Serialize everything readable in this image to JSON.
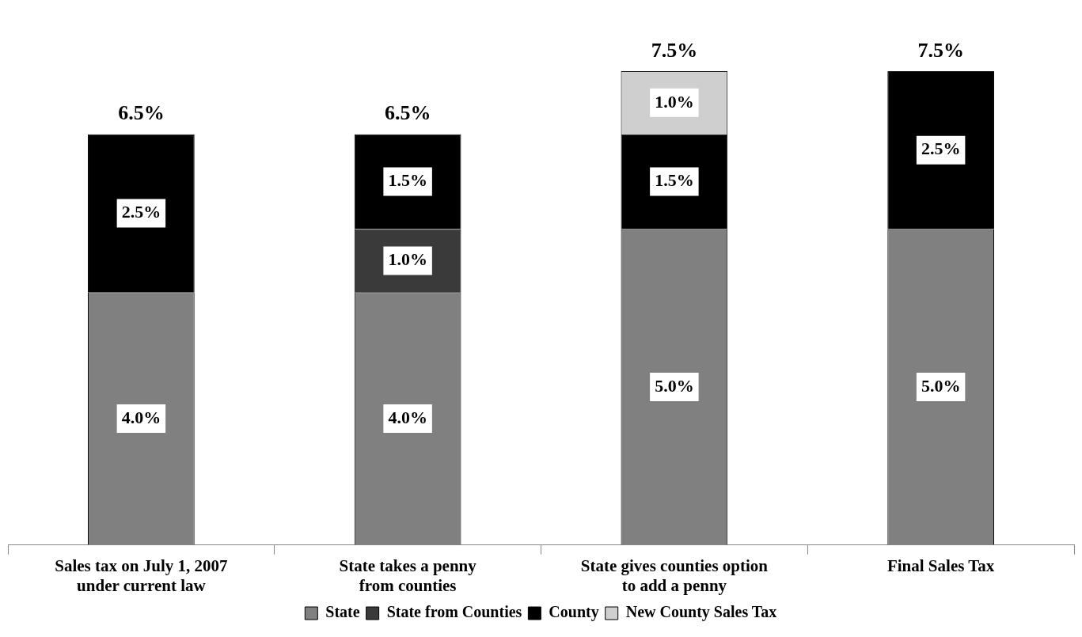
{
  "chart_data": {
    "type": "bar",
    "stacked": true,
    "categories": [
      "Sales tax on July 1, 2007\nunder current law",
      "State takes a penny\nfrom counties",
      "State gives counties option\nto add a penny",
      "Final Sales Tax"
    ],
    "series": [
      {
        "name": "State",
        "color": "#808080",
        "values": [
          4.0,
          4.0,
          5.0,
          5.0
        ],
        "value_labels": [
          "4.0%",
          "4.0%",
          "5.0%",
          "5.0%"
        ]
      },
      {
        "name": "State from Counties",
        "color": "#3a3a3a",
        "values": [
          null,
          1.0,
          null,
          null
        ],
        "value_labels": [
          null,
          "1.0%",
          null,
          null
        ]
      },
      {
        "name": "County",
        "color": "#000000",
        "values": [
          2.5,
          1.5,
          1.5,
          2.5
        ],
        "value_labels": [
          "2.5%",
          "1.5%",
          "1.5%",
          "2.5%"
        ]
      },
      {
        "name": "New County Sales Tax",
        "color": "#cfcfcf",
        "values": [
          null,
          null,
          1.0,
          null
        ],
        "value_labels": [
          null,
          null,
          "1.0%",
          null
        ]
      }
    ],
    "totals": [
      "6.5%",
      "6.5%",
      "7.5%",
      "7.5%"
    ],
    "legend": "bottom",
    "grid": false
  }
}
